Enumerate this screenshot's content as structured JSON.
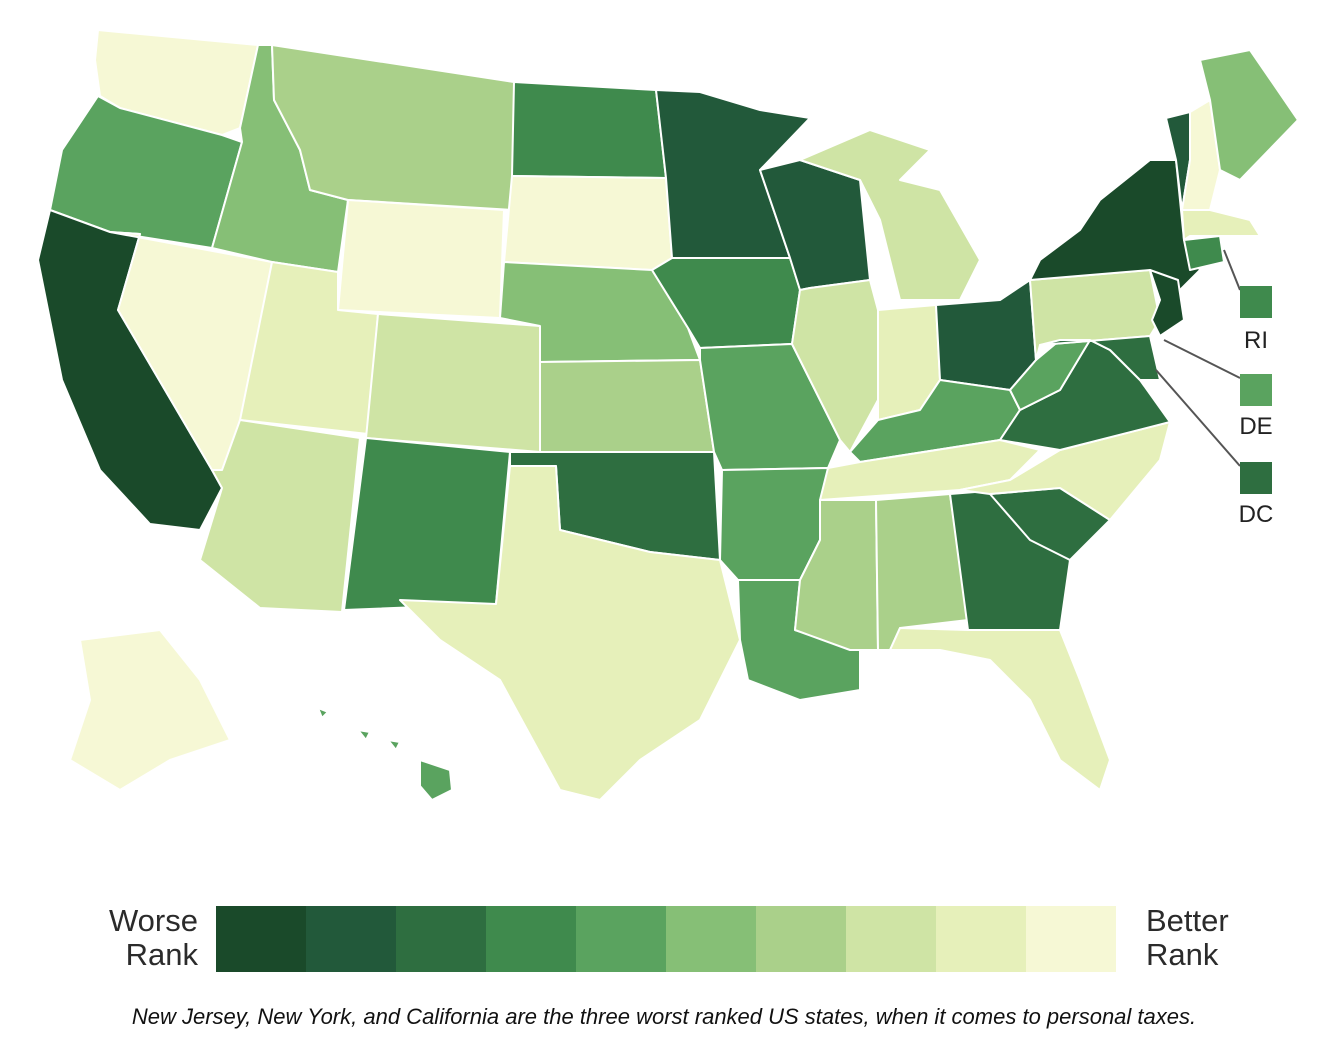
{
  "palette": [
    "#1a4a2a",
    "#22593a",
    "#2e6e40",
    "#3f8a4d",
    "#5aa35f",
    "#86bf76",
    "#aad08a",
    "#cfe4a5",
    "#e6f0ba",
    "#f6f8d5"
  ],
  "callouts": [
    {
      "abbr": "RI",
      "label": "RI",
      "rank_class": 3
    },
    {
      "abbr": "DE",
      "label": "DE",
      "rank_class": 4
    },
    {
      "abbr": "DC",
      "label": "DC",
      "rank_class": 2
    }
  ],
  "states": [
    {
      "abbr": "WA",
      "rank_class": 9
    },
    {
      "abbr": "OR",
      "rank_class": 4
    },
    {
      "abbr": "CA",
      "rank_class": 0
    },
    {
      "abbr": "NV",
      "rank_class": 9
    },
    {
      "abbr": "ID",
      "rank_class": 5
    },
    {
      "abbr": "MT",
      "rank_class": 6
    },
    {
      "abbr": "WY",
      "rank_class": 9
    },
    {
      "abbr": "UT",
      "rank_class": 8
    },
    {
      "abbr": "AZ",
      "rank_class": 7
    },
    {
      "abbr": "CO",
      "rank_class": 7
    },
    {
      "abbr": "NM",
      "rank_class": 3
    },
    {
      "abbr": "ND",
      "rank_class": 3
    },
    {
      "abbr": "SD",
      "rank_class": 9
    },
    {
      "abbr": "NE",
      "rank_class": 5
    },
    {
      "abbr": "KS",
      "rank_class": 6
    },
    {
      "abbr": "OK",
      "rank_class": 2
    },
    {
      "abbr": "TX",
      "rank_class": 8
    },
    {
      "abbr": "MN",
      "rank_class": 1
    },
    {
      "abbr": "IA",
      "rank_class": 3
    },
    {
      "abbr": "MO",
      "rank_class": 4
    },
    {
      "abbr": "AR",
      "rank_class": 4
    },
    {
      "abbr": "LA",
      "rank_class": 4
    },
    {
      "abbr": "WI",
      "rank_class": 1
    },
    {
      "abbr": "IL",
      "rank_class": 7
    },
    {
      "abbr": "MI",
      "rank_class": 7
    },
    {
      "abbr": "IN",
      "rank_class": 8
    },
    {
      "abbr": "OH",
      "rank_class": 1
    },
    {
      "abbr": "KY",
      "rank_class": 4
    },
    {
      "abbr": "TN",
      "rank_class": 8
    },
    {
      "abbr": "MS",
      "rank_class": 6
    },
    {
      "abbr": "AL",
      "rank_class": 6
    },
    {
      "abbr": "GA",
      "rank_class": 2
    },
    {
      "abbr": "FL",
      "rank_class": 8
    },
    {
      "abbr": "SC",
      "rank_class": 2
    },
    {
      "abbr": "NC",
      "rank_class": 8
    },
    {
      "abbr": "VA",
      "rank_class": 2
    },
    {
      "abbr": "WV",
      "rank_class": 4
    },
    {
      "abbr": "PA",
      "rank_class": 7
    },
    {
      "abbr": "NY",
      "rank_class": 0
    },
    {
      "abbr": "VT",
      "rank_class": 1
    },
    {
      "abbr": "NH",
      "rank_class": 9
    },
    {
      "abbr": "ME",
      "rank_class": 5
    },
    {
      "abbr": "MA",
      "rank_class": 8
    },
    {
      "abbr": "CT",
      "rank_class": 3
    },
    {
      "abbr": "NJ",
      "rank_class": 0
    },
    {
      "abbr": "MD",
      "rank_class": 2
    },
    {
      "abbr": "AK",
      "rank_class": 9
    },
    {
      "abbr": "HI",
      "rank_class": 4
    }
  ],
  "legend": {
    "worse_line1": "Worse",
    "worse_line2": "Rank",
    "better_line1": "Better",
    "better_line2": "Rank"
  },
  "caption": "New Jersey, New York, and California are the three worst ranked US states, when it comes to personal taxes."
}
